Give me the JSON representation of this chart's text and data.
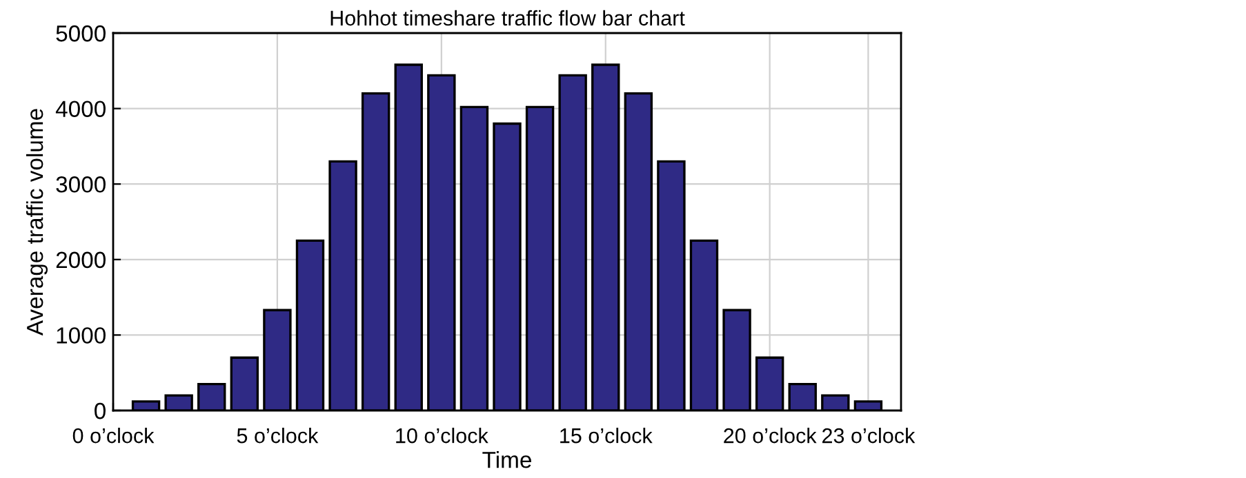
{
  "chart_data": {
    "type": "bar",
    "title": "Hohhot timeshare traffic flow bar chart",
    "xlabel": "Time",
    "ylabel": "Average traffic volume",
    "x": [
      1,
      2,
      3,
      4,
      5,
      6,
      7,
      8,
      9,
      10,
      11,
      12,
      13,
      14,
      15,
      16,
      17,
      18,
      19,
      20,
      21,
      22,
      23
    ],
    "values": [
      120,
      200,
      350,
      700,
      1330,
      2250,
      3300,
      4200,
      4580,
      4440,
      4020,
      3800,
      4020,
      4440,
      4580,
      4200,
      3300,
      2250,
      1330,
      700,
      350,
      200,
      120
    ],
    "color": "#2f2a85",
    "xlim": [
      0,
      24
    ],
    "xticks": [
      {
        "value": 0,
        "label": "0 o’clock"
      },
      {
        "value": 5,
        "label": "5 o’clock"
      },
      {
        "value": 10,
        "label": "10 o’clock"
      },
      {
        "value": 15,
        "label": "15 o’clock"
      },
      {
        "value": 20,
        "label": "20 o’clock"
      },
      {
        "value": 23,
        "label": "23 o’clock"
      }
    ],
    "ylim": [
      0,
      5000
    ],
    "yticks": [
      0,
      1000,
      2000,
      3000,
      4000,
      5000
    ],
    "grid": true
  }
}
